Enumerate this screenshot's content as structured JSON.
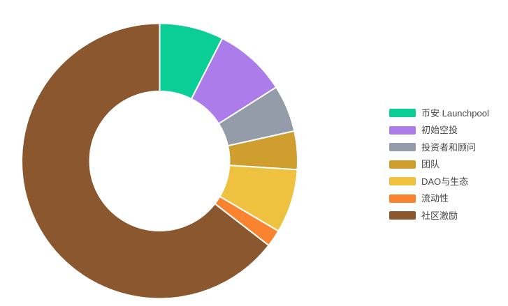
{
  "chart_data": {
    "type": "pie",
    "subtype": "donut",
    "title": "",
    "units": "percent",
    "hole_ratio": 0.5,
    "start_angle_deg": 0,
    "direction": "clockwise",
    "legend_position": "right",
    "gap_color": "#ffffff",
    "text_color": "#444444",
    "slices": [
      {
        "label": "币安 Launchpool",
        "value": 7.5,
        "color": "#0BCD96"
      },
      {
        "label": "初始空投",
        "value": 8.5,
        "color": "#AD7CEB"
      },
      {
        "label": "投资者和顾问",
        "value": 5.5,
        "color": "#939CA8"
      },
      {
        "label": "团队",
        "value": 4.5,
        "color": "#CF9E2E"
      },
      {
        "label": "DAO与生态",
        "value": 7.5,
        "color": "#EEC23F"
      },
      {
        "label": "流动性",
        "value": 2.0,
        "color": "#FA832F"
      },
      {
        "label": "社区激励",
        "value": 64.5,
        "color": "#8B572E"
      }
    ]
  }
}
